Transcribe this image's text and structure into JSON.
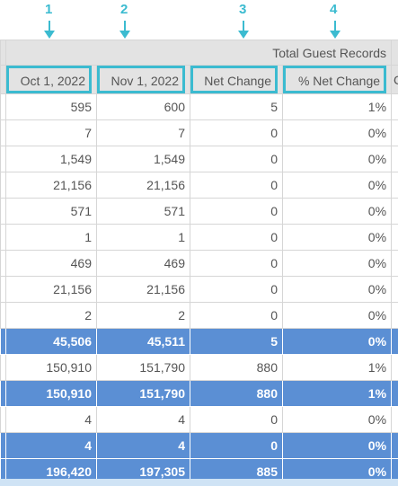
{
  "annotations": [
    "1",
    "2",
    "3",
    "4"
  ],
  "table": {
    "group_header": "Total Guest Records",
    "columns": [
      "Oct 1, 2022",
      "Nov 1, 2022",
      "Net Change",
      "% Net Change"
    ],
    "edge_header": "C",
    "rows": [
      {
        "type": "row",
        "cells": [
          "595",
          "600",
          "5",
          "1%"
        ]
      },
      {
        "type": "row",
        "cells": [
          "7",
          "7",
          "0",
          "0%"
        ]
      },
      {
        "type": "row",
        "cells": [
          "1,549",
          "1,549",
          "0",
          "0%"
        ]
      },
      {
        "type": "row",
        "cells": [
          "21,156",
          "21,156",
          "0",
          "0%"
        ]
      },
      {
        "type": "row",
        "cells": [
          "571",
          "571",
          "0",
          "0%"
        ]
      },
      {
        "type": "row",
        "cells": [
          "1",
          "1",
          "0",
          "0%"
        ]
      },
      {
        "type": "row",
        "cells": [
          "469",
          "469",
          "0",
          "0%"
        ]
      },
      {
        "type": "row",
        "cells": [
          "21,156",
          "21,156",
          "0",
          "0%"
        ]
      },
      {
        "type": "row",
        "cells": [
          "2",
          "2",
          "0",
          "0%"
        ]
      },
      {
        "type": "sub",
        "cells": [
          "45,506",
          "45,511",
          "5",
          "0%"
        ]
      },
      {
        "type": "row",
        "cells": [
          "150,910",
          "151,790",
          "880",
          "1%"
        ]
      },
      {
        "type": "sub",
        "cells": [
          "150,910",
          "151,790",
          "880",
          "1%"
        ]
      },
      {
        "type": "row",
        "cells": [
          "4",
          "4",
          "0",
          "0%"
        ]
      },
      {
        "type": "sub",
        "cells": [
          "4",
          "4",
          "0",
          "0%"
        ]
      },
      {
        "type": "sub",
        "cells": [
          "196,420",
          "197,305",
          "885",
          "0%"
        ]
      }
    ]
  },
  "colors": {
    "accent": "#3bbbd0",
    "subtotal_row": "#5b8fd4",
    "header_bg": "#e3e3e3"
  }
}
